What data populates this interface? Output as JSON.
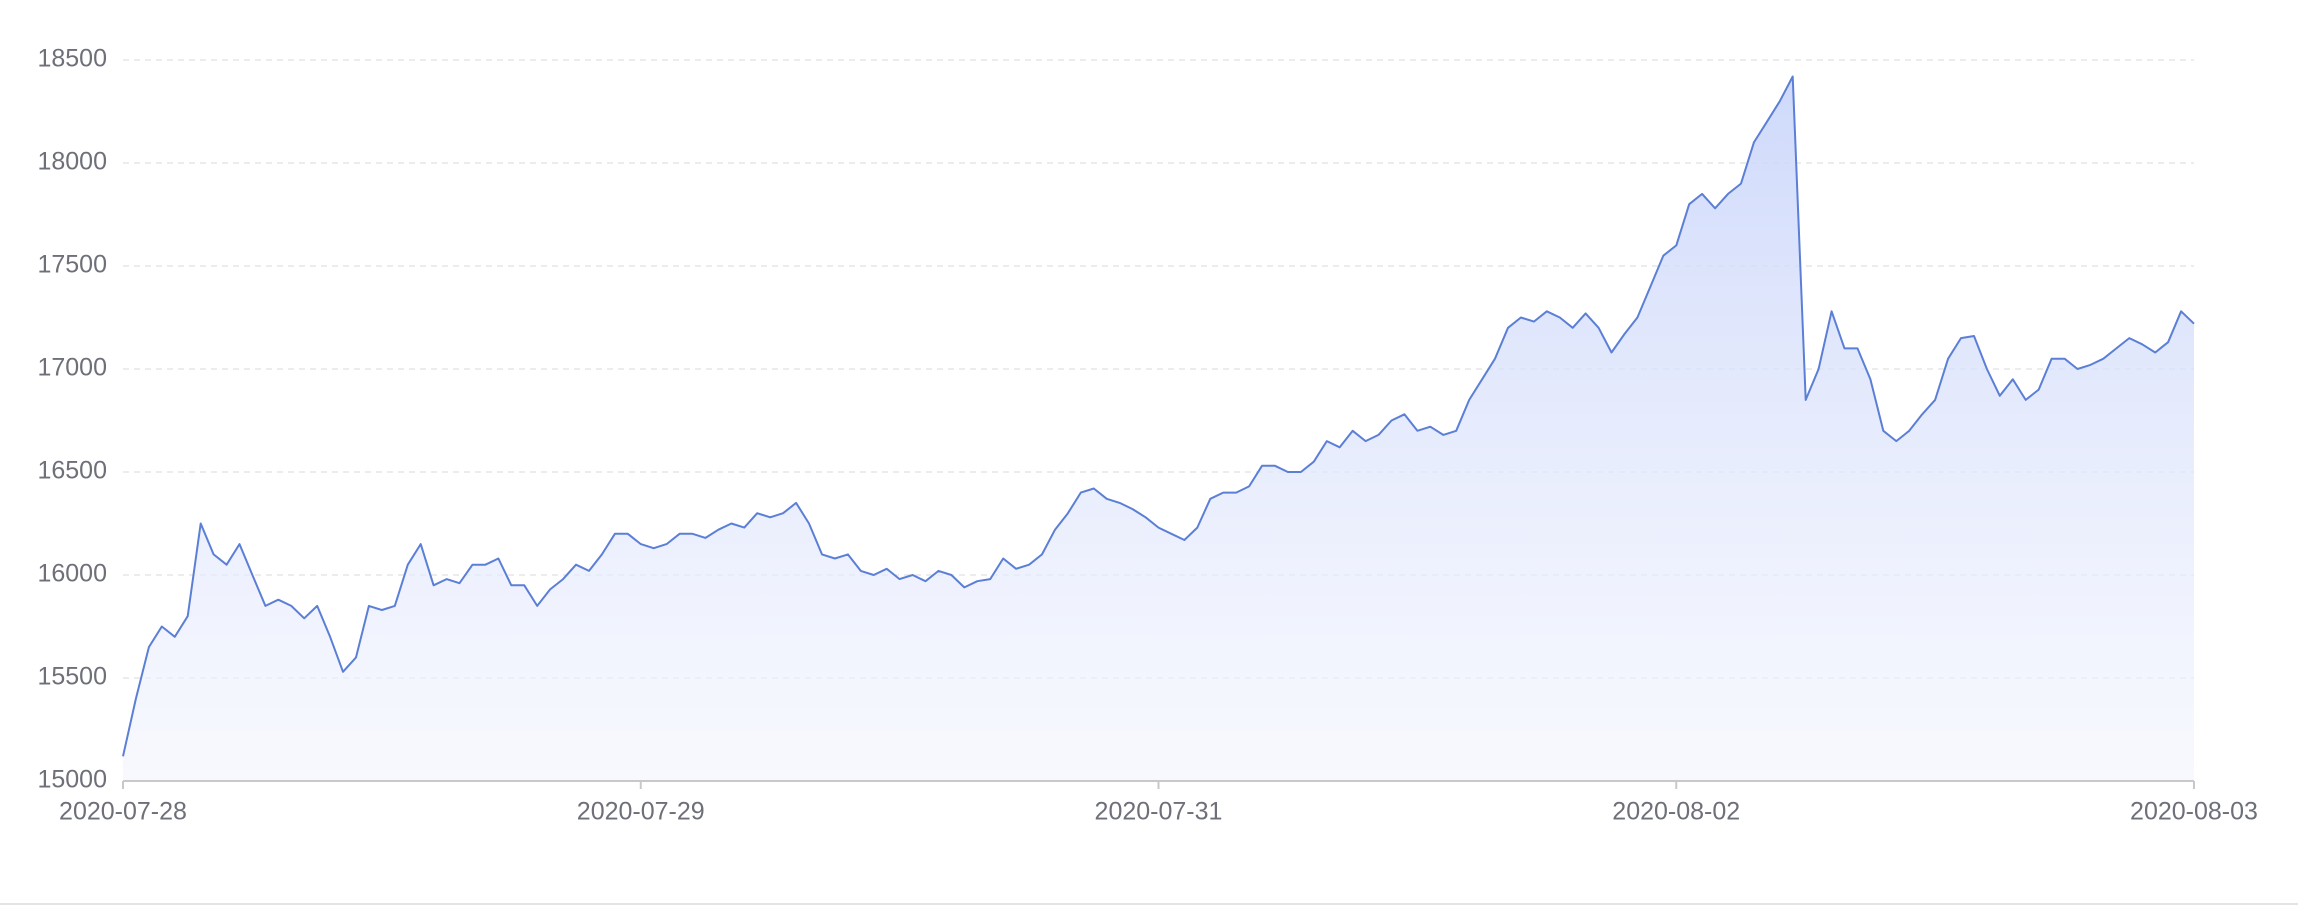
{
  "chart_data": {
    "type": "area",
    "categories": [
      "2020-07-28",
      null,
      null,
      null,
      null,
      null,
      null,
      null,
      null,
      null,
      null,
      null,
      null,
      null,
      null,
      null,
      null,
      null,
      null,
      null,
      null,
      null,
      null,
      null,
      null,
      null,
      null,
      null,
      null,
      null,
      null,
      null,
      null,
      null,
      null,
      null,
      null,
      null,
      null,
      null,
      "2020-07-29",
      null,
      null,
      null,
      null,
      null,
      null,
      null,
      null,
      null,
      null,
      null,
      null,
      null,
      null,
      null,
      null,
      null,
      null,
      null,
      null,
      null,
      null,
      null,
      null,
      null,
      null,
      null,
      null,
      null,
      null,
      null,
      null,
      null,
      null,
      null,
      null,
      null,
      null,
      null,
      "2020-07-31",
      null,
      null,
      null,
      null,
      null,
      null,
      null,
      null,
      null,
      null,
      null,
      null,
      null,
      null,
      null,
      null,
      null,
      null,
      null,
      null,
      null,
      null,
      null,
      null,
      null,
      null,
      null,
      null,
      null,
      null,
      null,
      null,
      null,
      null,
      null,
      null,
      null,
      null,
      null,
      "2020-08-02",
      null,
      null,
      null,
      null,
      null,
      null,
      null,
      null,
      null,
      null,
      null,
      null,
      null,
      null,
      null,
      null,
      null,
      null,
      null,
      null,
      null,
      null,
      null,
      null,
      null,
      null,
      null,
      null,
      null,
      null,
      null,
      null,
      null,
      null,
      null,
      null,
      null,
      null,
      null,
      "2020-08-03"
    ],
    "values": [
      15120,
      15400,
      15650,
      15750,
      15700,
      15800,
      16250,
      16100,
      16050,
      16150,
      16000,
      15850,
      15880,
      15850,
      15790,
      15850,
      15700,
      15530,
      15600,
      15850,
      15830,
      15850,
      16050,
      16150,
      15950,
      15980,
      15960,
      16050,
      16050,
      16080,
      15950,
      15950,
      15850,
      15930,
      15980,
      16050,
      16020,
      16100,
      16200,
      16200,
      16150,
      16130,
      16150,
      16200,
      16200,
      16180,
      16220,
      16250,
      16230,
      16300,
      16280,
      16300,
      16350,
      16250,
      16100,
      16080,
      16100,
      16020,
      16000,
      16030,
      15980,
      16000,
      15970,
      16020,
      16000,
      15940,
      15970,
      15980,
      16080,
      16030,
      16050,
      16100,
      16220,
      16300,
      16400,
      16420,
      16370,
      16350,
      16320,
      16280,
      16230,
      16200,
      16170,
      16230,
      16370,
      16400,
      16400,
      16430,
      16530,
      16530,
      16500,
      16500,
      16550,
      16650,
      16620,
      16700,
      16650,
      16680,
      16750,
      16780,
      16700,
      16720,
      16680,
      16700,
      16850,
      16950,
      17050,
      17200,
      17250,
      17230,
      17280,
      17250,
      17200,
      17270,
      17200,
      17080,
      17170,
      17250,
      17400,
      17550,
      17600,
      17800,
      17850,
      17780,
      17850,
      17900,
      18100,
      18200,
      18300,
      18420,
      16850,
      17000,
      17280,
      17100,
      17100,
      16950,
      16700,
      16650,
      16700,
      16780,
      16850,
      17050,
      17150,
      17160,
      17000,
      16870,
      16950,
      16850,
      16900,
      17050,
      17050,
      17000,
      17020,
      17050,
      17100,
      17150,
      17120,
      17080,
      17130,
      17280,
      17220
    ],
    "color": "#5b7fd6",
    "ylim": [
      15000,
      18500
    ],
    "yticks": [
      15000,
      15500,
      16000,
      16500,
      17000,
      17500,
      18000,
      18500
    ],
    "grid": true
  }
}
